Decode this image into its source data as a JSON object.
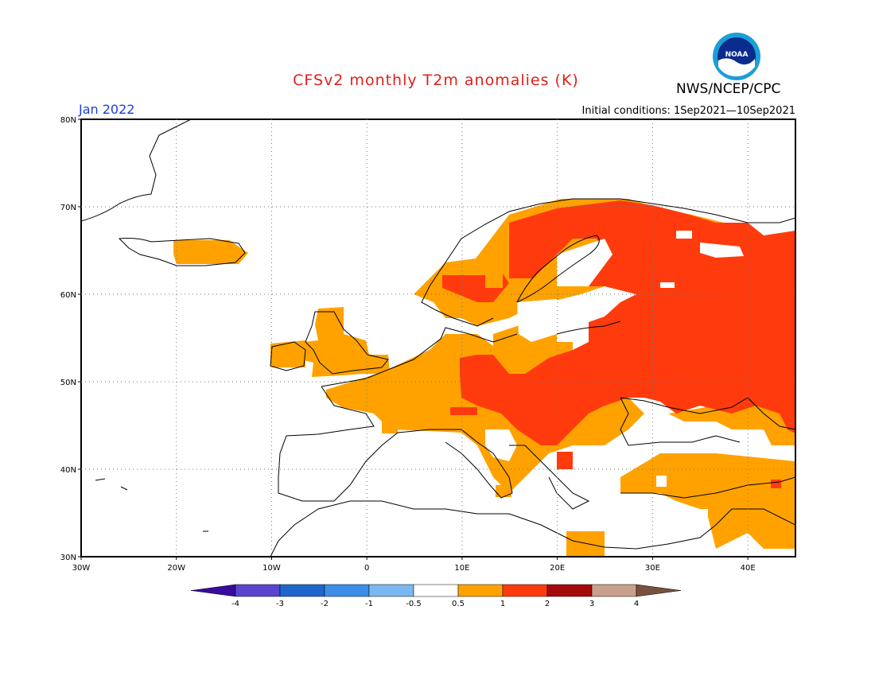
{
  "header": {
    "title": "CFSv2 monthly T2m anomalies (K)",
    "month": "Jan 2022",
    "organization": "NWS/NCEP/CPC",
    "initial_conditions": "Initial conditions: 1Sep2021—10Sep2021",
    "logo_text": "NOAA"
  },
  "map": {
    "lat_labels": [
      "80N",
      "70N",
      "60N",
      "50N",
      "40N",
      "30N"
    ],
    "lon_labels": [
      "30W",
      "20W",
      "10W",
      "0",
      "10E",
      "20E",
      "30E",
      "40E"
    ],
    "grid": true
  },
  "colorbar": {
    "tick_labels": [
      "-4",
      "-3",
      "-2",
      "-1",
      "-0.5",
      "0.5",
      "1",
      "2",
      "3",
      "4"
    ],
    "colors": [
      "#3a0a9e",
      "#5a45d0",
      "#1e66cc",
      "#3c8ee8",
      "#7cb8f0",
      "#ffffff",
      "#ffa200",
      "#ff3b0d",
      "#a50a0a",
      "#c9a08c",
      "#7a5040"
    ]
  }
}
